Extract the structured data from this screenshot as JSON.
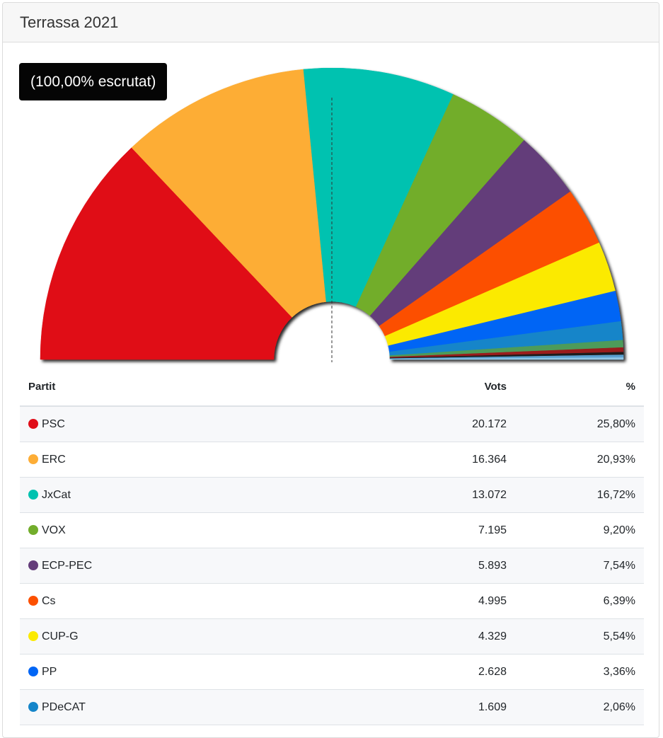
{
  "header": {
    "title": "Terrassa 2021"
  },
  "badge": {
    "text": "(100,00% escrutat)"
  },
  "table": {
    "headers": {
      "party": "Partit",
      "votes": "Vots",
      "pct": "%"
    }
  },
  "chart_data": {
    "type": "pie",
    "shape": "semicircle",
    "total_slices_shown": 14,
    "slices": [
      {
        "party": "PSC",
        "votes": "20.172",
        "pct": "25,80%",
        "value": 25.8,
        "color": "#e00e19"
      },
      {
        "party": "ERC",
        "votes": "16.364",
        "pct": "20,93%",
        "value": 20.93,
        "color": "#fdad36"
      },
      {
        "party": "JxCat",
        "votes": "13.072",
        "pct": "16,72%",
        "value": 16.72,
        "color": "#00c2b0"
      },
      {
        "party": "VOX",
        "votes": "7.195",
        "pct": "9,20%",
        "value": 9.2,
        "color": "#72ad2b"
      },
      {
        "party": "ECP-PEC",
        "votes": "5.893",
        "pct": "7,54%",
        "value": 7.54,
        "color": "#643d7a"
      },
      {
        "party": "Cs",
        "votes": "4.995",
        "pct": "6,39%",
        "value": 6.39,
        "color": "#fc5000"
      },
      {
        "party": "CUP-G",
        "votes": "4.329",
        "pct": "5,54%",
        "value": 5.54,
        "color": "#fbea00"
      },
      {
        "party": "PP",
        "votes": "2.628",
        "pct": "3,36%",
        "value": 3.36,
        "color": "#0065f5"
      },
      {
        "party": "PDeCAT",
        "votes": "1.609",
        "pct": "2,06%",
        "value": 2.06,
        "color": "#1585c9"
      }
    ],
    "minor_slices": [
      {
        "value": 0.8,
        "color": "#4d9b5a"
      },
      {
        "value": 0.5,
        "color": "#9a1c1c"
      },
      {
        "value": 0.3,
        "color": "#1d1d1d"
      },
      {
        "value": 0.3,
        "color": "#5aa0d0"
      },
      {
        "value": 0.2,
        "color": "#8fc6e6"
      }
    ],
    "majority_line": true
  }
}
